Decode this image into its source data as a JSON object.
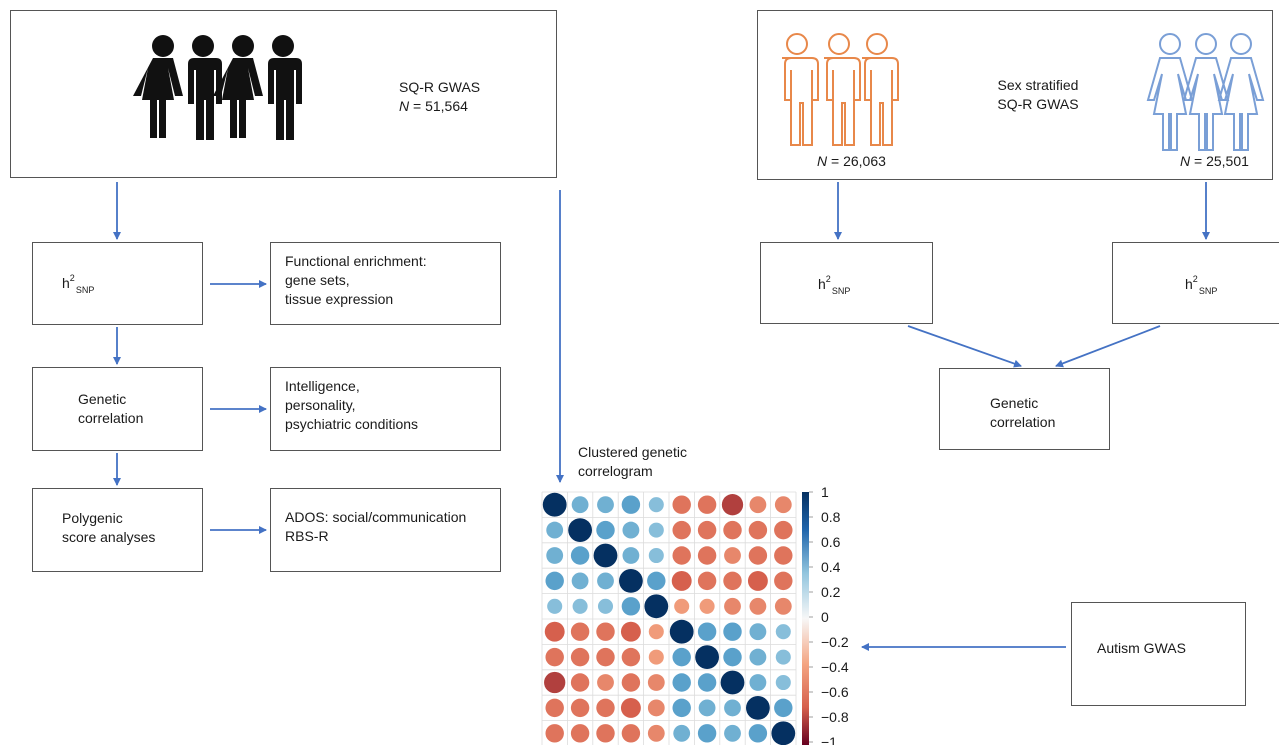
{
  "left_gwas": {
    "title": "SQ-R GWAS",
    "n_label": "N",
    "n_value": " = 51,564"
  },
  "right_gwas": {
    "title": "Sex stratified\nSQ-R GWAS",
    "male_n_label": "N",
    "male_n_value": " = 26,063",
    "female_n_label": "N",
    "female_n_value": " = 25,501"
  },
  "heritability": {
    "base": "h",
    "sup": "2",
    "sub": "SNP"
  },
  "left_flow": {
    "genetic_correlation": "Genetic\ncorrelation",
    "polygenic": "Polygenic\nscore analyses",
    "functional": "Functional enrichment:\ngene sets,\ntissue expression",
    "intelligence": "Intelligence,\npersonality,\npsychiatric conditions",
    "ados": "ADOS: social/communication\nRBS-R"
  },
  "right_flow": {
    "genetic_correlation": "Genetic\ncorrelation"
  },
  "correlogram": {
    "title": "Clustered genetic\ncorrelogram",
    "colorbar_ticks": [
      "1",
      "0.8",
      "0.6",
      "0.4",
      "0.2",
      "0",
      "−0.2",
      "−0.4",
      "−0.6",
      "−0.8",
      "−1"
    ]
  },
  "autism_gwas": "Autism GWAS",
  "colors": {
    "arrow": "#4472c4",
    "male_icon": "#e8884a",
    "female_icon": "#7a9fd6",
    "people_black": "#111111",
    "positive_strong": "#053061",
    "negative_strong": "#b2182b"
  },
  "icons": {
    "group_black": "people-group-icon",
    "group_male": "male-outline-group-icon",
    "group_female": "female-outline-group-icon"
  },
  "chart_data": {
    "type": "heatmap",
    "title": "Clustered genetic correlogram",
    "size": 10,
    "zlim": [
      -1,
      1
    ],
    "matrix": [
      [
        1.0,
        0.5,
        0.5,
        0.6,
        0.4,
        -0.6,
        -0.6,
        -0.8,
        -0.5,
        -0.5
      ],
      [
        0.5,
        1.0,
        0.6,
        0.5,
        0.4,
        -0.6,
        -0.6,
        -0.6,
        -0.6,
        -0.6
      ],
      [
        0.5,
        0.6,
        1.0,
        0.5,
        0.4,
        -0.6,
        -0.6,
        -0.5,
        -0.6,
        -0.6
      ],
      [
        0.6,
        0.5,
        0.5,
        1.0,
        0.6,
        -0.7,
        -0.6,
        -0.6,
        -0.7,
        -0.6
      ],
      [
        0.4,
        0.4,
        0.4,
        0.6,
        1.0,
        -0.4,
        -0.4,
        -0.5,
        -0.5,
        -0.5
      ],
      [
        -0.7,
        -0.6,
        -0.6,
        -0.7,
        -0.4,
        1.0,
        0.6,
        0.6,
        0.5,
        0.4
      ],
      [
        -0.6,
        -0.6,
        -0.6,
        -0.6,
        -0.4,
        0.6,
        1.0,
        0.6,
        0.5,
        0.4
      ],
      [
        -0.8,
        -0.6,
        -0.5,
        -0.6,
        -0.5,
        0.6,
        0.6,
        1.0,
        0.5,
        0.4
      ],
      [
        -0.6,
        -0.6,
        -0.6,
        -0.7,
        -0.5,
        0.6,
        0.5,
        0.5,
        1.0,
        0.6
      ],
      [
        -0.6,
        -0.6,
        -0.6,
        -0.6,
        -0.5,
        0.5,
        0.6,
        0.5,
        0.6,
        1.0
      ]
    ]
  }
}
